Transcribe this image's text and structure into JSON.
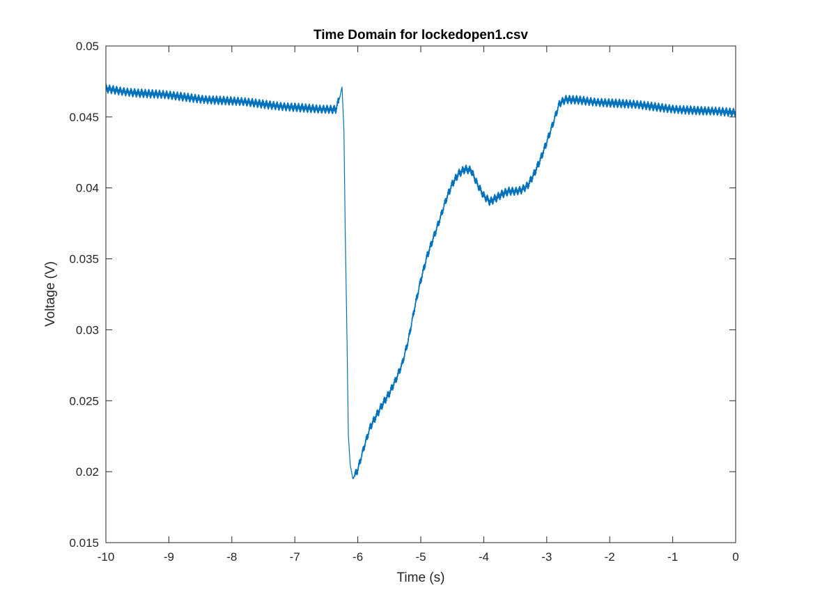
{
  "chart_data": {
    "type": "line",
    "title": "Time Domain for lockedopen1.csv",
    "xlabel": "Time (s)",
    "ylabel": "Voltage (V)",
    "xlim": [
      -10,
      0
    ],
    "ylim": [
      0.015,
      0.05
    ],
    "xticks": [
      -10,
      -9,
      -8,
      -7,
      -6,
      -5,
      -4,
      -3,
      -2,
      -1,
      0
    ],
    "xtick_labels": [
      "-10",
      "-9",
      "-8",
      "-7",
      "-6",
      "-5",
      "-4",
      "-3",
      "-2",
      "-1",
      "0"
    ],
    "yticks": [
      0.015,
      0.02,
      0.025,
      0.03,
      0.035,
      0.04,
      0.045,
      0.05
    ],
    "ytick_labels": [
      "0.015",
      "0.02",
      "0.025",
      "0.03",
      "0.035",
      "0.04",
      "0.045",
      "0.05"
    ],
    "grid": false,
    "box": true,
    "line_color": "#0072BD",
    "series": [
      {
        "x": [
          -10.0,
          -9.5,
          -9.0,
          -8.5,
          -8.0,
          -7.5,
          -7.0,
          -6.6,
          -6.35,
          -6.28,
          -6.25,
          -6.22,
          -6.2,
          -6.17,
          -6.15,
          -6.12,
          -6.08,
          -6.0,
          -5.9,
          -5.8,
          -5.7,
          -5.6,
          -5.5,
          -5.4,
          -5.3,
          -5.2,
          -5.1,
          -5.0,
          -4.9,
          -4.8,
          -4.7,
          -4.6,
          -4.5,
          -4.4,
          -4.3,
          -4.2,
          -4.1,
          -4.0,
          -3.9,
          -3.8,
          -3.7,
          -3.6,
          -3.5,
          -3.4,
          -3.3,
          -3.2,
          -3.1,
          -3.0,
          -2.9,
          -2.8,
          -2.7,
          -2.5,
          -2.0,
          -1.5,
          -1.0,
          -0.5,
          0.0
        ],
        "y": [
          0.047,
          0.0467,
          0.0465,
          0.0463,
          0.0461,
          0.0459,
          0.0457,
          0.0455,
          0.0455,
          0.0465,
          0.0471,
          0.044,
          0.037,
          0.029,
          0.0225,
          0.0205,
          0.0195,
          0.0202,
          0.0218,
          0.0232,
          0.024,
          0.0248,
          0.0255,
          0.0264,
          0.0275,
          0.0292,
          0.0315,
          0.0335,
          0.0352,
          0.0365,
          0.0378,
          0.0392,
          0.0403,
          0.041,
          0.0413,
          0.0412,
          0.0402,
          0.0394,
          0.039,
          0.0393,
          0.0396,
          0.0398,
          0.0398,
          0.0399,
          0.0402,
          0.041,
          0.042,
          0.0432,
          0.0445,
          0.0459,
          0.0462,
          0.0462,
          0.046,
          0.0458,
          0.0456,
          0.0454,
          0.0453
        ]
      }
    ]
  }
}
